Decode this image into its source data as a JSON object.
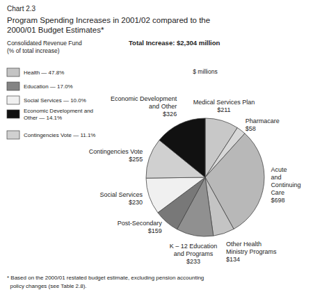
{
  "chart_data": {
    "type": "pie",
    "chart_label": "Chart 2.3",
    "title": "Program Spending Increases in 2001/02 compared to the\n2000/01 Budget Estimates*",
    "subtitle": "Consolidated Revenue Fund\n(% of total increase)",
    "note": "Total Increase: $2,304 million",
    "axis_label": "$ millions",
    "footnote": "* Based on the 2000/01 restated budget estimate, excluding pension accounting\n  policy changes (see Table 2.8).",
    "categories": [
      "Medical Services Plan",
      "Pharmacare",
      "Acute\nand\nContinuing\nCare",
      "Other Health\nMinistry Programs",
      "K – 12 Education\nand Programs",
      "Post-Secondary",
      "Social Services",
      "Contingencies Vote",
      "Economic Development\nand Other"
    ],
    "values": [
      211,
      58,
      698,
      134,
      233,
      159,
      230,
      255,
      326
    ],
    "value_labels": [
      "$211",
      "$58",
      "$698",
      "$134",
      "$233",
      "$159",
      "$230",
      "$255",
      "$326"
    ],
    "data_labels": true,
    "colors": [
      "#c8c8c8",
      "#d8d8d8",
      "#b8b8b8",
      "#c4c4c4",
      "#909090",
      "#787878",
      "#f0f0f0",
      "#d0d0d0",
      "#111111"
    ],
    "legend_items": [
      {
        "label": "Health — 47.8%",
        "color": "#c4c4c4"
      },
      {
        "label": "Education — 17.0%",
        "color": "#848484"
      },
      {
        "label": "Social Services — 10.0%",
        "color": "#f0f0f0"
      },
      {
        "label": "Economic Development and\nOther — 14.1%",
        "color": "#111111"
      },
      {
        "label": "Contingencies Vote — 11.1%",
        "color": "#d0d0d0"
      }
    ]
  }
}
